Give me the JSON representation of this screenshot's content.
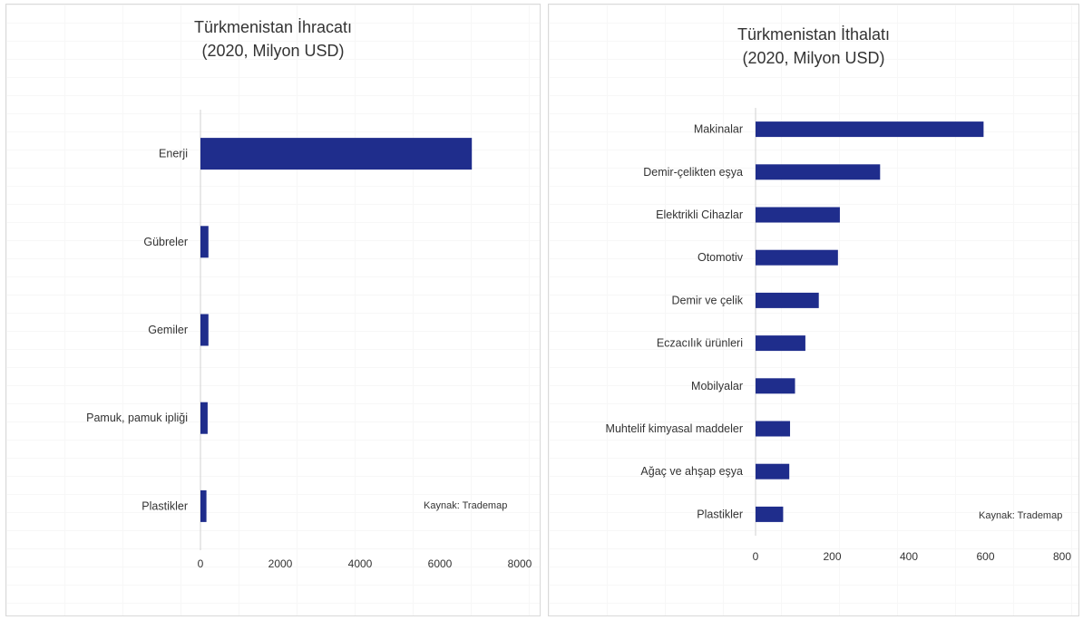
{
  "charts": [
    {
      "title_line1": "Türkmenistan İhracatı",
      "title_line2": "(2020, Milyon USD)",
      "source_note": "Kaynak:  Trademap"
    },
    {
      "title_line1": "Türkmenistan İthalatı",
      "title_line2": "(2020, Milyon USD)",
      "source_note": "Kaynak:  Trademap"
    }
  ],
  "bar_color": "#1f2d8c",
  "chart_data": [
    {
      "type": "bar",
      "orientation": "horizontal",
      "title": "Türkmenistan İhracatı (2020, Milyon USD)",
      "categories": [
        "Enerji",
        "Gübreler",
        "Gemiler",
        "Pamuk, pamuk ipliği",
        "Plastikler"
      ],
      "values": [
        6800,
        200,
        200,
        180,
        150
      ],
      "xlim": [
        0,
        8000
      ],
      "xticks": [
        0,
        2000,
        4000,
        6000,
        8000
      ],
      "grid": false,
      "annotation": "Kaynak:  Trademap"
    },
    {
      "type": "bar",
      "orientation": "horizontal",
      "title": "Türkmenistan İthalatı (2020, Milyon USD)",
      "categories": [
        "Makinalar",
        "Demir-çelikten eşya",
        "Elektrikli Cihazlar",
        "Otomotiv",
        "Demir ve çelik",
        "Eczacılık ürünleri",
        "Mobilyalar",
        "Muhtelif kimyasal maddeler",
        "Ağaç ve ahşap eşya",
        "Plastikler"
      ],
      "values": [
        595,
        325,
        220,
        215,
        165,
        130,
        103,
        90,
        88,
        72
      ],
      "xlim": [
        0,
        800
      ],
      "xticks": [
        0,
        200,
        400,
        600,
        800
      ],
      "grid": false,
      "annotation": "Kaynak:  Trademap"
    }
  ]
}
